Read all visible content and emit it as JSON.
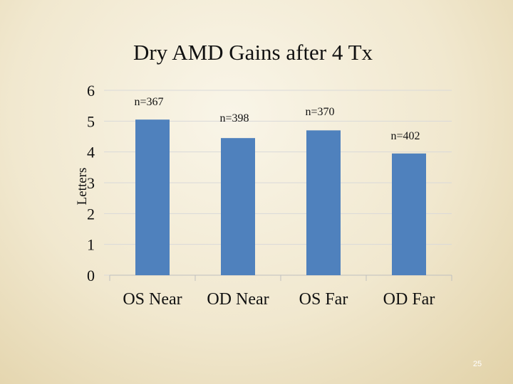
{
  "slide": {
    "number": "25"
  },
  "chart_data": {
    "type": "bar",
    "title": "Dry AMD Gains after 4 Tx",
    "ylabel": "Letters",
    "xlabel": "",
    "categories": [
      "OS Near",
      "OD Near",
      "OS Far",
      "OD Far"
    ],
    "values": [
      5.05,
      4.45,
      4.7,
      3.95
    ],
    "annotations": [
      "n=367",
      "n=398",
      "n=370",
      "n=402"
    ],
    "yticks": [
      "0",
      "1",
      "2",
      "3",
      "4",
      "5",
      "6"
    ],
    "ylim": [
      0,
      6
    ],
    "grid": true,
    "legend": "none",
    "bar_color": "#4f81bd",
    "grid_color": "#d9d9d9"
  }
}
